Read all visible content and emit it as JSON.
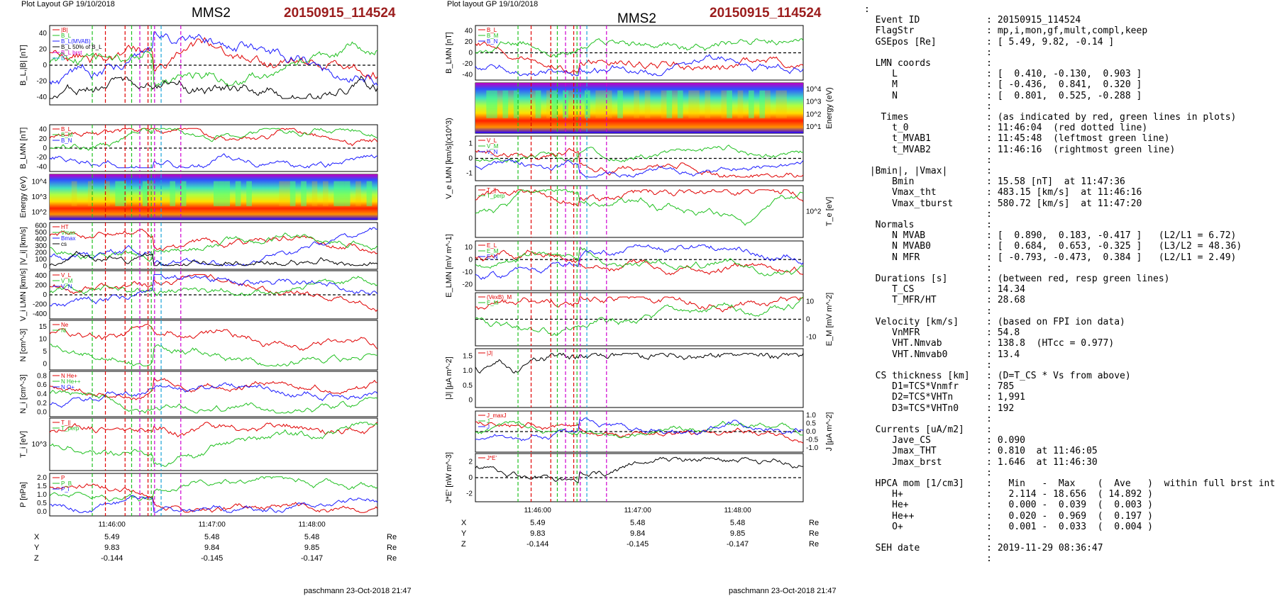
{
  "left": {
    "header": "Plot Layout GP 19/10/2018",
    "title": "MMS2",
    "event": "20150915_114524",
    "footer": "paschmann 23-Oct-2018 21:47",
    "panels": [
      {
        "key": "b",
        "ylabel": "B_L,|B| [nT]",
        "ticks": [
          "40",
          "20",
          "0",
          "-20",
          "-40"
        ],
        "ylim": [
          -50,
          50
        ],
        "legend": [
          "|B|",
          "B_L",
          "B_L(MVAB)",
          "B_L 50% of B_L",
          "B_L brst",
          "B"
        ]
      },
      {
        "key": "blmn",
        "ylabel": "B_LMN [nT]",
        "ticks": [
          "40",
          "20",
          "0",
          "-20",
          "-40"
        ],
        "ylim": [
          -50,
          50
        ],
        "legend": [
          "B_L",
          "B_M",
          "B_N"
        ]
      },
      {
        "key": "spec",
        "ylabel": "Energy (eV)",
        "ticks": [
          "10^4",
          "10^3",
          "10^2"
        ],
        "ylim": [
          0,
          1
        ]
      },
      {
        "key": "vi",
        "ylabel": "|V_i| [km/s]",
        "ticks": [
          "600",
          "500",
          "400",
          "300",
          "200",
          "100",
          "0"
        ],
        "ylim": [
          0,
          600
        ],
        "legend": [
          "HT",
          "Vmax",
          "Bmax",
          "cs"
        ]
      },
      {
        "key": "vilmn",
        "ylabel": "V_i LMN [km/s]",
        "ticks": [
          "400",
          "200",
          "0",
          "-200",
          "-400"
        ],
        "ylim": [
          -500,
          500
        ],
        "legend": [
          "V_L",
          "V_M",
          "V_N"
        ]
      },
      {
        "key": "n",
        "ylabel": "N [cm^-3]",
        "ticks": [
          "15",
          "10",
          "5",
          "0"
        ],
        "ylim": [
          0,
          16
        ],
        "legend": [
          "Ne",
          "Ni"
        ]
      },
      {
        "key": "ni",
        "ylabel": "N_i [cm^-3]",
        "ticks": [
          "0.8",
          "0.6",
          "0.4",
          "0.2",
          "0.0"
        ],
        "ylim": [
          0,
          1
        ],
        "legend": [
          "N He+",
          "N He++",
          "N O+"
        ]
      },
      {
        "key": "ti",
        "ylabel": "T_i [eV]",
        "ticks": [
          "10^3"
        ],
        "ylim": [
          0,
          1
        ],
        "legend": [
          "T_||",
          "T_perp"
        ]
      },
      {
        "key": "p",
        "ylabel": "P [nPa]",
        "ticks": [
          "2.0",
          "1.5",
          "1.0",
          "0.5",
          "0.0"
        ],
        "ylim": [
          0,
          2
        ],
        "legend": [
          "P",
          "P_B",
          "P_i"
        ]
      }
    ],
    "xticks": [
      "11:46:00",
      "11:47:00",
      "11:48:00"
    ],
    "coords": {
      "rows": [
        {
          "label": "X",
          "values": [
            "5.49",
            "5.48",
            "5.48"
          ],
          "unit": "Re"
        },
        {
          "label": "Y",
          "values": [
            "9.83",
            "9.84",
            "9.85"
          ],
          "unit": "Re"
        },
        {
          "label": "Z",
          "values": [
            "-0.144",
            "-0.145",
            "-0.147"
          ],
          "unit": "Re"
        }
      ]
    }
  },
  "middle": {
    "header": "Plot layout GP 19/10/2018",
    "title": "MMS2",
    "event": "20150915_114524",
    "footer": "paschmann 23-Oct-2018 21:47",
    "panels": [
      {
        "key": "blmn",
        "ylabel": "B_LMN [nT]",
        "ticks": [
          "40",
          "20",
          "0",
          "-20",
          "-40"
        ],
        "ylim": [
          -50,
          50
        ],
        "legend": [
          "B_L",
          "B_M",
          "B_N"
        ]
      },
      {
        "key": "spec",
        "ylabel": "Energy (eV)",
        "ticks": [
          "10^4",
          "10^3",
          "10^2",
          "10^1"
        ],
        "ylim": [
          0,
          1
        ]
      },
      {
        "key": "ve",
        "ylabel": "V_e LMN [km/s](x10^3)",
        "ticks": [
          "1",
          "0",
          "-1"
        ],
        "ylim": [
          -1.5,
          1.5
        ],
        "legend": [
          "V_L",
          "V_M",
          "V_N"
        ]
      },
      {
        "key": "te",
        "ylabel": "T_e [eV]",
        "ticks": [
          "10^2"
        ],
        "ylim": [
          0,
          1
        ],
        "legend": [
          "T_||",
          "T_perp"
        ]
      },
      {
        "key": "e",
        "ylabel": "E_LMN [mV m^-1]",
        "ticks": [
          "10",
          "0",
          "-10",
          "-20"
        ],
        "ylim": [
          -25,
          15
        ],
        "legend": [
          "E_L",
          "E_M",
          "E_N"
        ]
      },
      {
        "key": "em",
        "ylabel": "E_M [mV m^-2]",
        "ticks": [
          "10",
          "0",
          "-10"
        ],
        "ylim": [
          -15,
          15
        ],
        "legend": [
          "(VexB)_M",
          "E_M"
        ]
      },
      {
        "key": "j",
        "ylabel": "|J| [μA m^-2]",
        "ticks": [
          "1.5",
          "1.0",
          "0.5",
          "0"
        ],
        "ylim": [
          0,
          1.6
        ],
        "legend": [
          "|J|"
        ]
      },
      {
        "key": "jlmn",
        "ylabel": "J [μA m^-2]",
        "ticks": [
          "1.0",
          "0.5",
          "0.0",
          "-0.5",
          "-1.0"
        ],
        "ylim": [
          -1.1,
          1.1
        ],
        "legend": [
          "J_maxJ",
          "J",
          "J"
        ]
      },
      {
        "key": "jdote",
        "ylabel": "J*E' [nW m^-3]",
        "ticks": [
          "2",
          "0",
          "-2"
        ],
        "ylim": [
          -3,
          3
        ],
        "legend": [
          "J*E'"
        ]
      }
    ],
    "xticks": [
      "11:46:00",
      "11:47:00",
      "11:48:00"
    ],
    "coords": {
      "rows": [
        {
          "label": "X",
          "values": [
            "5.49",
            "5.48",
            "5.48"
          ],
          "unit": "Re"
        },
        {
          "label": "Y",
          "values": [
            "9.83",
            "9.84",
            "9.85"
          ],
          "unit": "Re"
        },
        {
          "label": "Z",
          "values": [
            "-0.144",
            "-0.145",
            "-0.147"
          ],
          "unit": "Re"
        }
      ]
    }
  },
  "info": {
    "lines": [
      ":",
      "  Event ID            : 20150915_114524",
      "  FlagStr             : mp,i,mon,gf,mult,compl,keep",
      "  GSEpos [Re]         : [ 5.49, 9.82, -0.14 ]",
      "                      :",
      "  LMN coords          :",
      "     L                : [  0.410, -0.130,  0.903 ]",
      "     M                : [ -0.436,  0.841,  0.320 ]",
      "     N                : [  0.801,  0.525, -0.288 ]",
      "                      :",
      "   Times              : (as indicated by red, green lines in plots)",
      "     t_0              : 11:46:04  (red dotted line)",
      "     t_MVAB1          : 11:45:48  (leftmost green line)",
      "     t_MVAB2          : 11:46:16  (rightmost green line)",
      "                      :",
      " |Bmin|, |Vmax|       :",
      "     Bmin             : 15.58 [nT]  at 11:47:36",
      "     Vmax_tht         : 483.15 [km/s]  at 11:46:16",
      "     Vmax_tburst      : 580.72 [km/s]  at 11:47:20",
      "                      :",
      "  Normals             :",
      "     N MVAB           : [  0.890,  0.183, -0.417 ]   (L2/L1 = 6.72)",
      "     N MVAB0          : [  0.684,  0.653, -0.325 ]   (L3/L2 = 48.36)",
      "     N MFR            : [ -0.793, -0.473,  0.384 ]   (L2/L1 = 2.49)",
      "                      :",
      "  Durations [s]       : (between red, resp green lines)",
      "     T_CS             : 14.34",
      "     T_MFR/HT         : 28.68",
      "                      :",
      "  Velocity [km/s]     : (based on FPI ion data)",
      "     VnMFR            : 54.8",
      "     VHT.Nmvab        : 138.8  (HTcc = 0.977)",
      "     VHT.Nmvab0       : 13.4",
      "                      :",
      "  CS thickness [km]   : (D=T_CS * Vs from above)",
      "     D1=TCS*Vnmfr     : 785",
      "     D2=TCS*VHTn      : 1,991",
      "     D3=TCS*VHTn0     : 192",
      "                      :",
      "  Currents [uA/m2]    :",
      "     Jave_CS          : 0.090",
      "     Jmax_THT         : 0.810  at 11:46:05",
      "     Jmax_brst        : 1.646  at 11:46:30",
      "                      :",
      "  HPCA mom [1/cm3]    :   Min   -  Max    (  Ave   )  within full brst int",
      "     H+               :   2.114 - 18.656  ( 14.892 )",
      "     He+              :   0.000 -  0.039  (  0.003 )",
      "     He++             :   0.020 -  0.969  (  0.197 )",
      "     O+               :   0.001 -  0.033  (  0.004 )",
      "                      :",
      "  SEH date            : 2019-11-29 08:36:47",
      "                      :"
    ]
  },
  "chart_data": [
    {
      "type": "line",
      "title": "MMS2",
      "subtitle": "20150915_114524",
      "panels": "left stack: B_L/|B|, B_LMN, ion spectrogram, |V_i|, V_i LMN, N, N_i, T_i, P",
      "x_range": [
        "11:45:30",
        "11:48:45"
      ],
      "xticks": [
        "11:46:00",
        "11:47:00",
        "11:48:00"
      ]
    },
    {
      "type": "line",
      "title": "MMS2",
      "subtitle": "20150915_114524",
      "panels": "middle stack: B_LMN, electron spectrogram, V_e LMN, T_e, E_LMN, E_M, |J|, J_LMN, J*E'",
      "x_range": [
        "11:45:30",
        "11:48:45"
      ],
      "xticks": [
        "11:46:00",
        "11:47:00",
        "11:48:00"
      ]
    }
  ],
  "colors": {
    "event": "#9b1c1c",
    "red": "#e00000",
    "green": "#20c020",
    "blue": "#1a1aff",
    "magenta": "#d000d0",
    "grey": "#666666",
    "cyan": "#1ba4d8"
  }
}
